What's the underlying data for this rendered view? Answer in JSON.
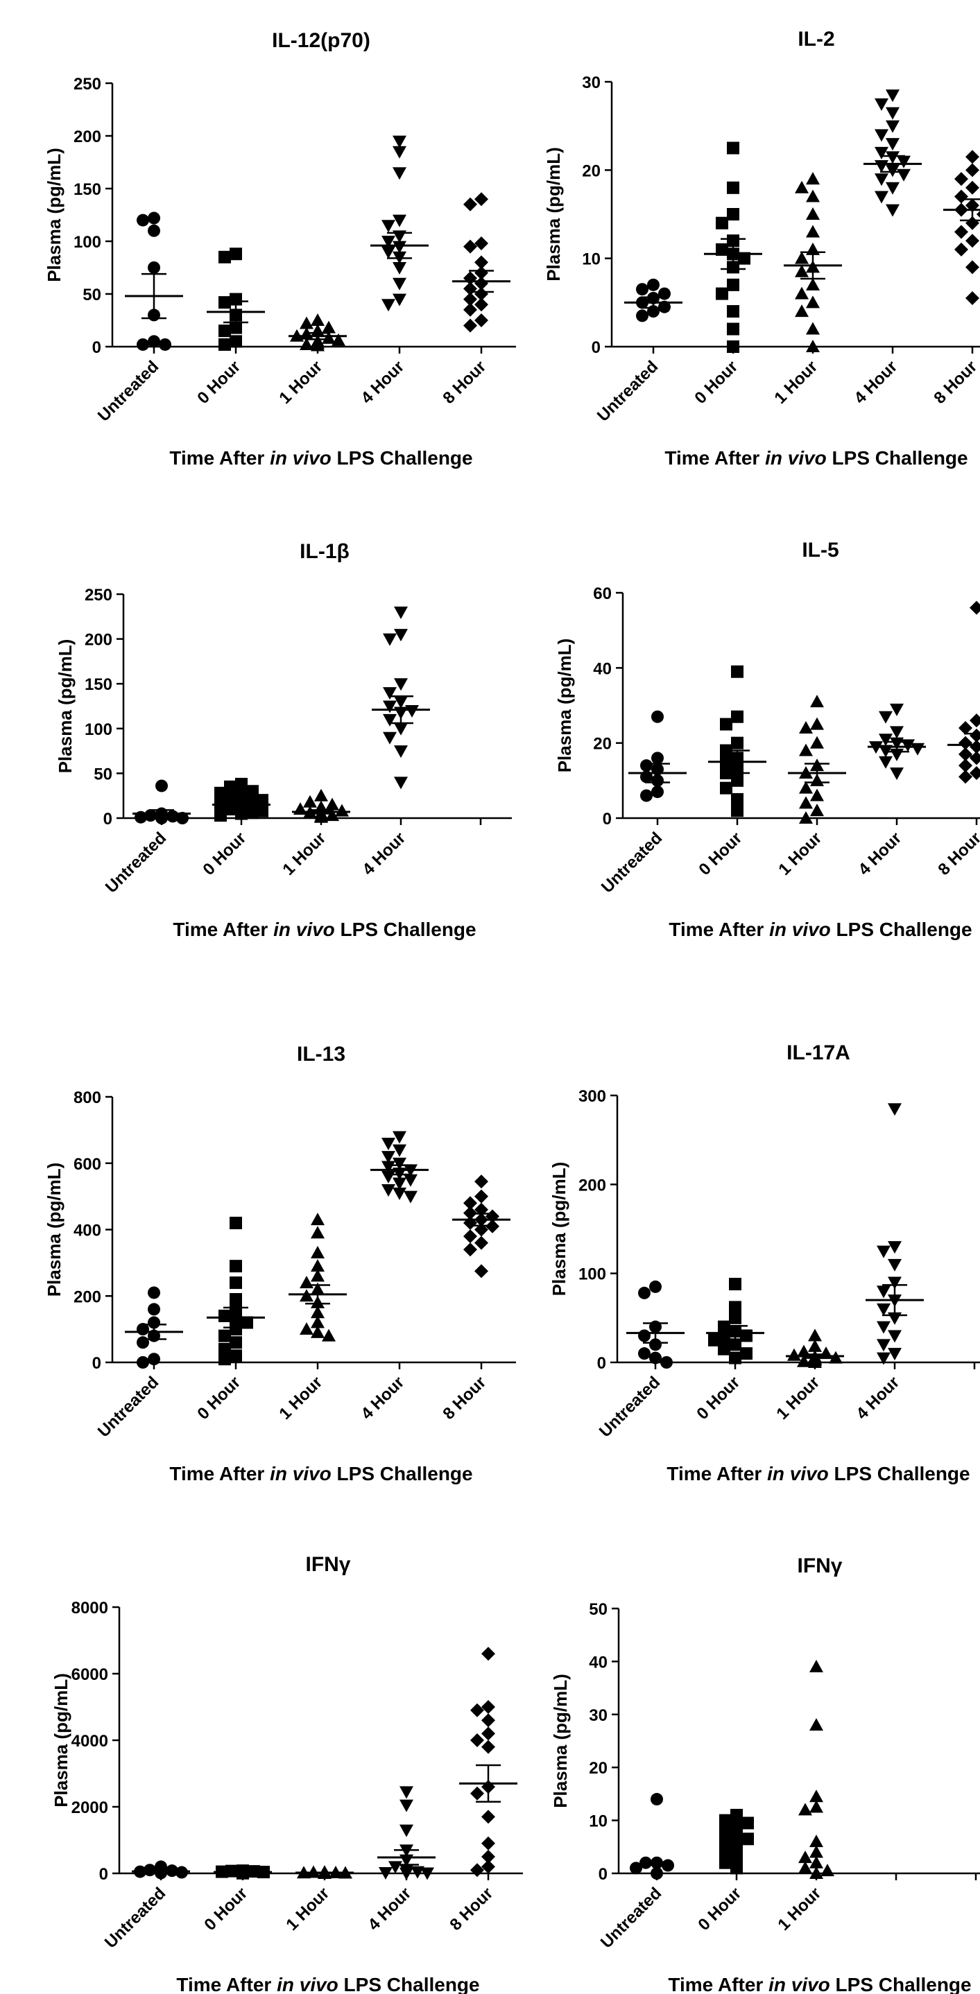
{
  "x_axis_label_prefix": "Time After ",
  "x_axis_label_italic": "in vivo",
  "x_axis_label_suffix": " LPS Challenge",
  "chart_data": [
    {
      "type": "scatter",
      "title": "IL-12(p70)",
      "ylabel": "Plasma (pg/mL)",
      "ylim": [
        0,
        250
      ],
      "yticks": [
        "0",
        "50",
        "100",
        "150",
        "200",
        "250"
      ],
      "categories": [
        "Untreated",
        "0 Hour",
        "1 Hour",
        "4 Hour",
        "8 Hour"
      ],
      "groups": [
        {
          "marker": "circle",
          "mean": 48,
          "sem": 21,
          "points": [
            122,
            120,
            110,
            75,
            30,
            5,
            2,
            2
          ]
        },
        {
          "marker": "square",
          "mean": 33,
          "sem": 10,
          "points": [
            88,
            85,
            45,
            42,
            30,
            18,
            15,
            5,
            2
          ]
        },
        {
          "marker": "triangle-up",
          "mean": 10,
          "sem": 3,
          "points": [
            25,
            22,
            18,
            15,
            12,
            10,
            8,
            6,
            5,
            3,
            2,
            1
          ]
        },
        {
          "marker": "triangle-down",
          "mean": 96,
          "sem": 12,
          "points": [
            195,
            185,
            165,
            120,
            115,
            105,
            100,
            95,
            90,
            85,
            75,
            60,
            45,
            40
          ]
        },
        {
          "marker": "diamond",
          "mean": 62,
          "sem": 10,
          "points": [
            140,
            135,
            98,
            95,
            80,
            70,
            65,
            60,
            55,
            50,
            45,
            40,
            35,
            25,
            20
          ]
        }
      ]
    },
    {
      "type": "scatter",
      "title": "IL-2",
      "ylabel": "Plasma (pg/mL)",
      "ylim": [
        0,
        30
      ],
      "yticks": [
        "0",
        "10",
        "20",
        "30"
      ],
      "categories": [
        "Untreated",
        "0 Hour",
        "1 Hour",
        "4 Hour",
        "8 Hour"
      ],
      "groups": [
        {
          "marker": "circle",
          "mean": 5,
          "sem": 0.6,
          "points": [
            7,
            6.5,
            6,
            5.5,
            5,
            4.5,
            4,
            3.5
          ]
        },
        {
          "marker": "square",
          "mean": 10.5,
          "sem": 1.7,
          "points": [
            22.5,
            18,
            15,
            14,
            12,
            11,
            10.5,
            10,
            9,
            7,
            6,
            4,
            2,
            0
          ]
        },
        {
          "marker": "triangle-up",
          "mean": 9.2,
          "sem": 1.5,
          "points": [
            19,
            18,
            17,
            15,
            13,
            11,
            10,
            9,
            8.5,
            7,
            6,
            5,
            4,
            2,
            0
          ]
        },
        {
          "marker": "triangle-down",
          "mean": 20.7,
          "sem": 0.9,
          "points": [
            28.5,
            27.5,
            26.5,
            25,
            24,
            23,
            22,
            21.5,
            21,
            20.5,
            20,
            19.5,
            19,
            18,
            17,
            15.5
          ]
        },
        {
          "marker": "diamond",
          "mean": 15.5,
          "sem": 1.2,
          "points": [
            21.5,
            20,
            19,
            18,
            17,
            16,
            15.5,
            15,
            14,
            13,
            12,
            11,
            9,
            5.5
          ]
        }
      ]
    },
    {
      "type": "scatter",
      "title": "IL-1β",
      "ylabel": "Plasma (pg/mL)",
      "ylim": [
        0,
        250
      ],
      "yticks": [
        "0",
        "50",
        "100",
        "150",
        "200",
        "250"
      ],
      "categories": [
        "Untreated",
        "0 Hour",
        "1 Hour",
        "4 Hour"
      ],
      "extra_ticks": 1,
      "groups": [
        {
          "marker": "circle",
          "mean": 5,
          "sem": 4,
          "points": [
            36,
            5,
            3,
            2,
            1,
            0,
            0
          ]
        },
        {
          "marker": "square",
          "mean": 15,
          "sem": 3,
          "points": [
            38,
            35,
            30,
            28,
            25,
            22,
            20,
            18,
            15,
            12,
            10,
            8,
            6,
            5,
            3
          ]
        },
        {
          "marker": "triangle-up",
          "mean": 7,
          "sem": 2,
          "points": [
            25,
            18,
            15,
            12,
            10,
            8,
            6,
            5,
            3,
            2,
            1
          ]
        },
        {
          "marker": "triangle-down",
          "mean": 121,
          "sem": 15,
          "points": [
            230,
            205,
            200,
            150,
            140,
            130,
            125,
            120,
            118,
            110,
            100,
            90,
            75,
            40
          ]
        }
      ]
    },
    {
      "type": "scatter",
      "title": "IL-5",
      "ylabel": "Plasma (pg/mL)",
      "ylim": [
        0,
        60
      ],
      "yticks": [
        "0",
        "20",
        "40",
        "60"
      ],
      "categories": [
        "Untreated",
        "0 Hour",
        "1 Hour",
        "4 Hour",
        "8 Hour"
      ],
      "groups": [
        {
          "marker": "circle",
          "mean": 12,
          "sem": 2.5,
          "points": [
            27,
            16,
            14,
            13,
            11,
            10,
            7,
            6
          ]
        },
        {
          "marker": "square",
          "mean": 15,
          "sem": 3,
          "points": [
            39,
            27,
            25,
            20,
            18,
            16,
            15,
            13,
            12,
            10,
            8,
            5,
            2
          ]
        },
        {
          "marker": "triangle-up",
          "mean": 12,
          "sem": 2.5,
          "points": [
            31,
            25,
            24,
            20,
            18,
            14,
            12,
            10,
            8,
            6,
            4,
            2,
            0
          ]
        },
        {
          "marker": "triangle-down",
          "mean": 19,
          "sem": 1.3,
          "points": [
            29,
            27,
            23,
            21,
            20,
            19.5,
            19,
            18.5,
            18,
            17,
            15,
            12
          ]
        },
        {
          "marker": "diamond",
          "mean": 19.5,
          "sem": 3,
          "points": [
            56,
            26,
            24,
            22,
            20,
            19,
            18,
            17,
            16,
            14,
            12,
            11
          ]
        }
      ]
    },
    {
      "type": "scatter",
      "title": "IL-13",
      "ylabel": "Plasma (pg/mL)",
      "ylim": [
        0,
        800
      ],
      "yticks": [
        "0",
        "200",
        "400",
        "600",
        "800"
      ],
      "categories": [
        "Untreated",
        "0 Hour",
        "1 Hour",
        "4 Hour",
        "8 Hour"
      ],
      "groups": [
        {
          "marker": "circle",
          "mean": 92,
          "sem": 22,
          "points": [
            210,
            160,
            120,
            100,
            80,
            60,
            10,
            0
          ]
        },
        {
          "marker": "square",
          "mean": 135,
          "sem": 30,
          "points": [
            420,
            290,
            240,
            190,
            160,
            140,
            130,
            120,
            100,
            80,
            60,
            40,
            20,
            10
          ]
        },
        {
          "marker": "triangle-up",
          "mean": 205,
          "sem": 28,
          "points": [
            430,
            390,
            330,
            290,
            260,
            240,
            220,
            200,
            180,
            150,
            120,
            100,
            90,
            80
          ]
        },
        {
          "marker": "triangle-down",
          "mean": 580,
          "sem": 14,
          "points": [
            680,
            660,
            640,
            620,
            600,
            590,
            580,
            570,
            560,
            550,
            540,
            520,
            510,
            500
          ]
        },
        {
          "marker": "diamond",
          "mean": 430,
          "sem": 18,
          "points": [
            545,
            500,
            480,
            460,
            450,
            440,
            430,
            420,
            410,
            400,
            380,
            360,
            340,
            275
          ]
        }
      ]
    },
    {
      "type": "scatter",
      "title": "IL-17A",
      "ylabel": "Plasma (pg/mL)",
      "ylim": [
        0,
        300
      ],
      "yticks": [
        "0",
        "100",
        "200",
        "300"
      ],
      "categories": [
        "Untreated",
        "0 Hour",
        "1 Hour",
        "4 Hour"
      ],
      "extra_ticks": 1,
      "groups": [
        {
          "marker": "circle",
          "mean": 33,
          "sem": 11,
          "points": [
            85,
            78,
            40,
            30,
            20,
            10,
            5,
            0
          ]
        },
        {
          "marker": "square",
          "mean": 33,
          "sem": 8,
          "points": [
            88,
            62,
            50,
            40,
            35,
            30,
            28,
            25,
            20,
            15,
            10,
            5
          ]
        },
        {
          "marker": "triangle-up",
          "mean": 7,
          "sem": 2,
          "points": [
            30,
            18,
            12,
            10,
            8,
            6,
            5,
            4,
            3,
            2,
            1,
            0
          ]
        },
        {
          "marker": "triangle-down",
          "mean": 70,
          "sem": 17,
          "points": [
            285,
            130,
            125,
            110,
            90,
            80,
            70,
            60,
            50,
            40,
            30,
            20,
            10,
            5
          ]
        }
      ]
    },
    {
      "type": "scatter",
      "title": "IFNγ",
      "ylabel": "Plasma (pg/mL)",
      "ylim": [
        0,
        8000
      ],
      "yticks": [
        "0",
        "2000",
        "4000",
        "6000",
        "8000"
      ],
      "categories": [
        "Untreated",
        "0 Hour",
        "1 Hour",
        "4 Hour",
        "8 Hour"
      ],
      "groups": [
        {
          "marker": "circle",
          "mean": 60,
          "sem": 30,
          "points": [
            200,
            100,
            80,
            50,
            30,
            10
          ]
        },
        {
          "marker": "square",
          "mean": 40,
          "sem": 10,
          "points": [
            80,
            70,
            60,
            50,
            40,
            30,
            20,
            10,
            5
          ]
        },
        {
          "marker": "triangle-up",
          "mean": 20,
          "sem": 5,
          "points": [
            40,
            30,
            20,
            15,
            10,
            5,
            0
          ]
        },
        {
          "marker": "triangle-down",
          "mean": 480,
          "sem": 220,
          "points": [
            2450,
            2050,
            1300,
            700,
            400,
            200,
            100,
            50,
            20,
            10,
            5
          ]
        },
        {
          "marker": "diamond",
          "mean": 2700,
          "sem": 550,
          "points": [
            6600,
            5000,
            4900,
            4600,
            4200,
            4000,
            3800,
            2600,
            2400,
            1700,
            900,
            500,
            200,
            100
          ]
        }
      ]
    },
    {
      "type": "scatter",
      "title": "IFNγ",
      "ylabel": "Plasma (pg/mL)",
      "ylim": [
        0,
        50
      ],
      "yticks": [
        "0",
        "10",
        "20",
        "30",
        "40",
        "50"
      ],
      "categories": [
        "Untreated",
        "0 Hour",
        "1 Hour"
      ],
      "extra_ticks": 2,
      "groups": [
        {
          "marker": "circle",
          "mean": null,
          "sem": null,
          "points": [
            14,
            2,
            2,
            1.5,
            1,
            0
          ]
        },
        {
          "marker": "square",
          "mean": null,
          "sem": null,
          "points": [
            11,
            10,
            9.5,
            9,
            8,
            7,
            6.5,
            6,
            5,
            4,
            3,
            2,
            1
          ]
        },
        {
          "marker": "triangle-up",
          "mean": null,
          "sem": null,
          "points": [
            39,
            28,
            14.5,
            12.5,
            12,
            6,
            4,
            3,
            2,
            1,
            0.5,
            0
          ]
        }
      ]
    }
  ]
}
